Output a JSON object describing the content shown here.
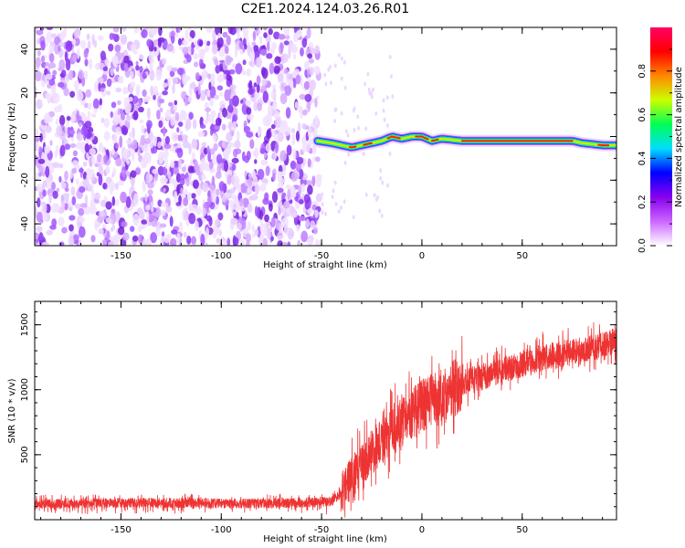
{
  "title": "C2E1.2024.124.03.26.R01",
  "chart_data": [
    {
      "type": "heatmap",
      "xlabel": "Height of straight line (km)",
      "ylabel": "Frequency (Hz)",
      "xlim": [
        -193,
        97
      ],
      "ylim": [
        -50,
        50
      ],
      "x_ticks": [
        -150,
        -100,
        -50,
        0,
        50
      ],
      "y_ticks": [
        -40,
        -20,
        0,
        20,
        40
      ],
      "noise_region_x": [
        -193,
        -51
      ],
      "signal_ridge": {
        "x": [
          -52,
          -45,
          -40,
          -35,
          -30,
          -25,
          -20,
          -15,
          -10,
          -5,
          0,
          5,
          10,
          20,
          40,
          60,
          75,
          80,
          90,
          97
        ],
        "y": [
          -2,
          -3,
          -4,
          -5,
          -4,
          -3,
          -2,
          0,
          -1,
          0,
          0,
          -2,
          -1,
          -2,
          -2,
          -2,
          -2,
          -3,
          -4,
          -4
        ]
      },
      "colorbar": {
        "label": "Normalized spectral amplitude",
        "range": [
          0,
          1
        ],
        "ticks": [
          "0.0",
          "0.2",
          "0.4",
          "0.6",
          "0.8"
        ],
        "colors": [
          "#ffffff",
          "#cc66ff",
          "#8800ee",
          "#0000ff",
          "#00ddff",
          "#00ff55",
          "#ccff00",
          "#ff8800",
          "#ff0000",
          "#ff0066"
        ]
      }
    },
    {
      "type": "line",
      "xlabel": "Height of straight line (km)",
      "ylabel": "SNR (10 * v/v)",
      "xlim": [
        -193,
        97
      ],
      "ylim": [
        0,
        1680
      ],
      "x_ticks": [
        -150,
        -100,
        -50,
        0,
        50
      ],
      "y_ticks": [
        500,
        1000,
        1500
      ],
      "color": "#ee3333",
      "series": [
        {
          "x": [
            -193,
            -150,
            -120,
            -100,
            -80,
            -60,
            -45,
            -40,
            -35,
            -30,
            -20,
            -10,
            0,
            10,
            20,
            30,
            40,
            50,
            60,
            70,
            80,
            90,
            97
          ],
          "y": [
            120,
            130,
            130,
            125,
            125,
            130,
            140,
            210,
            330,
            440,
            600,
            750,
            880,
            950,
            1050,
            1100,
            1150,
            1200,
            1250,
            1280,
            1300,
            1350,
            1380
          ]
        }
      ]
    }
  ]
}
